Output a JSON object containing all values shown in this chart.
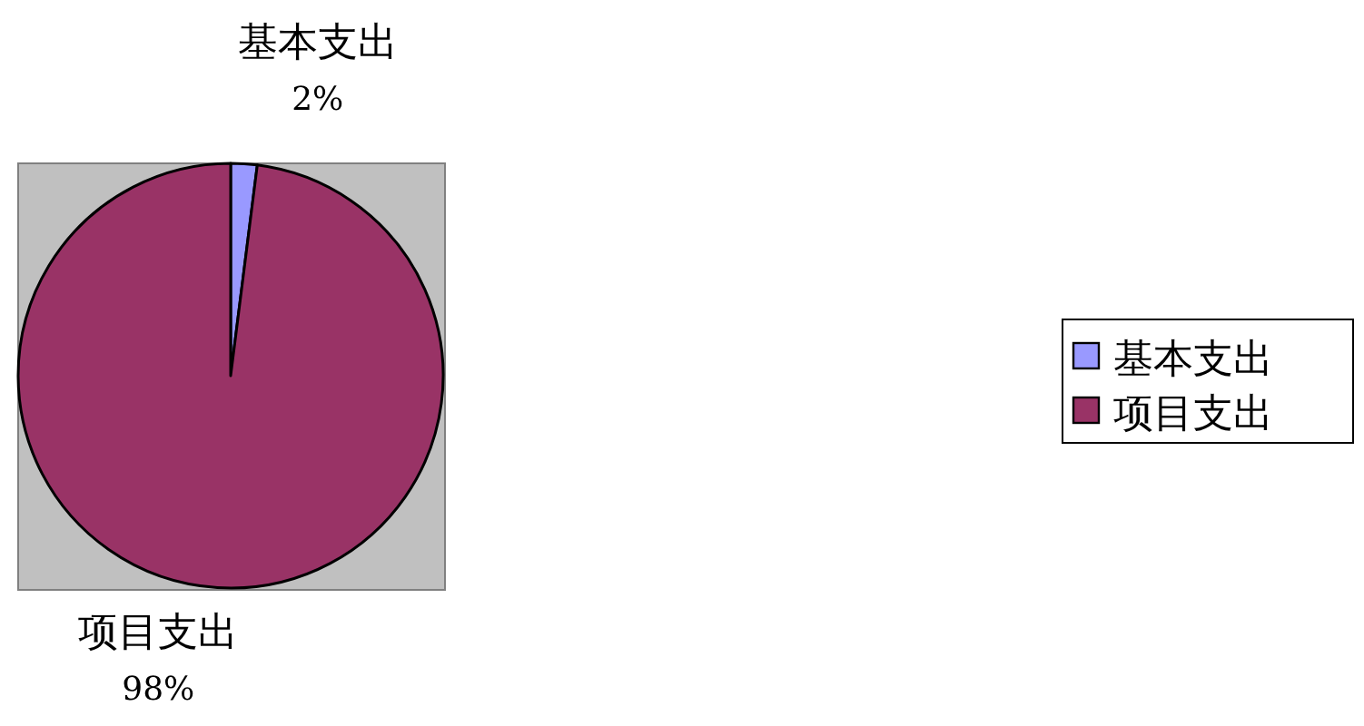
{
  "chart_data": {
    "type": "pie",
    "categories": [
      "基本支出",
      "项目支出"
    ],
    "values": [
      2,
      98
    ],
    "colors": [
      "#9999ff",
      "#993366"
    ],
    "value_labels": [
      "2%",
      "98%"
    ],
    "legend": "right"
  }
}
